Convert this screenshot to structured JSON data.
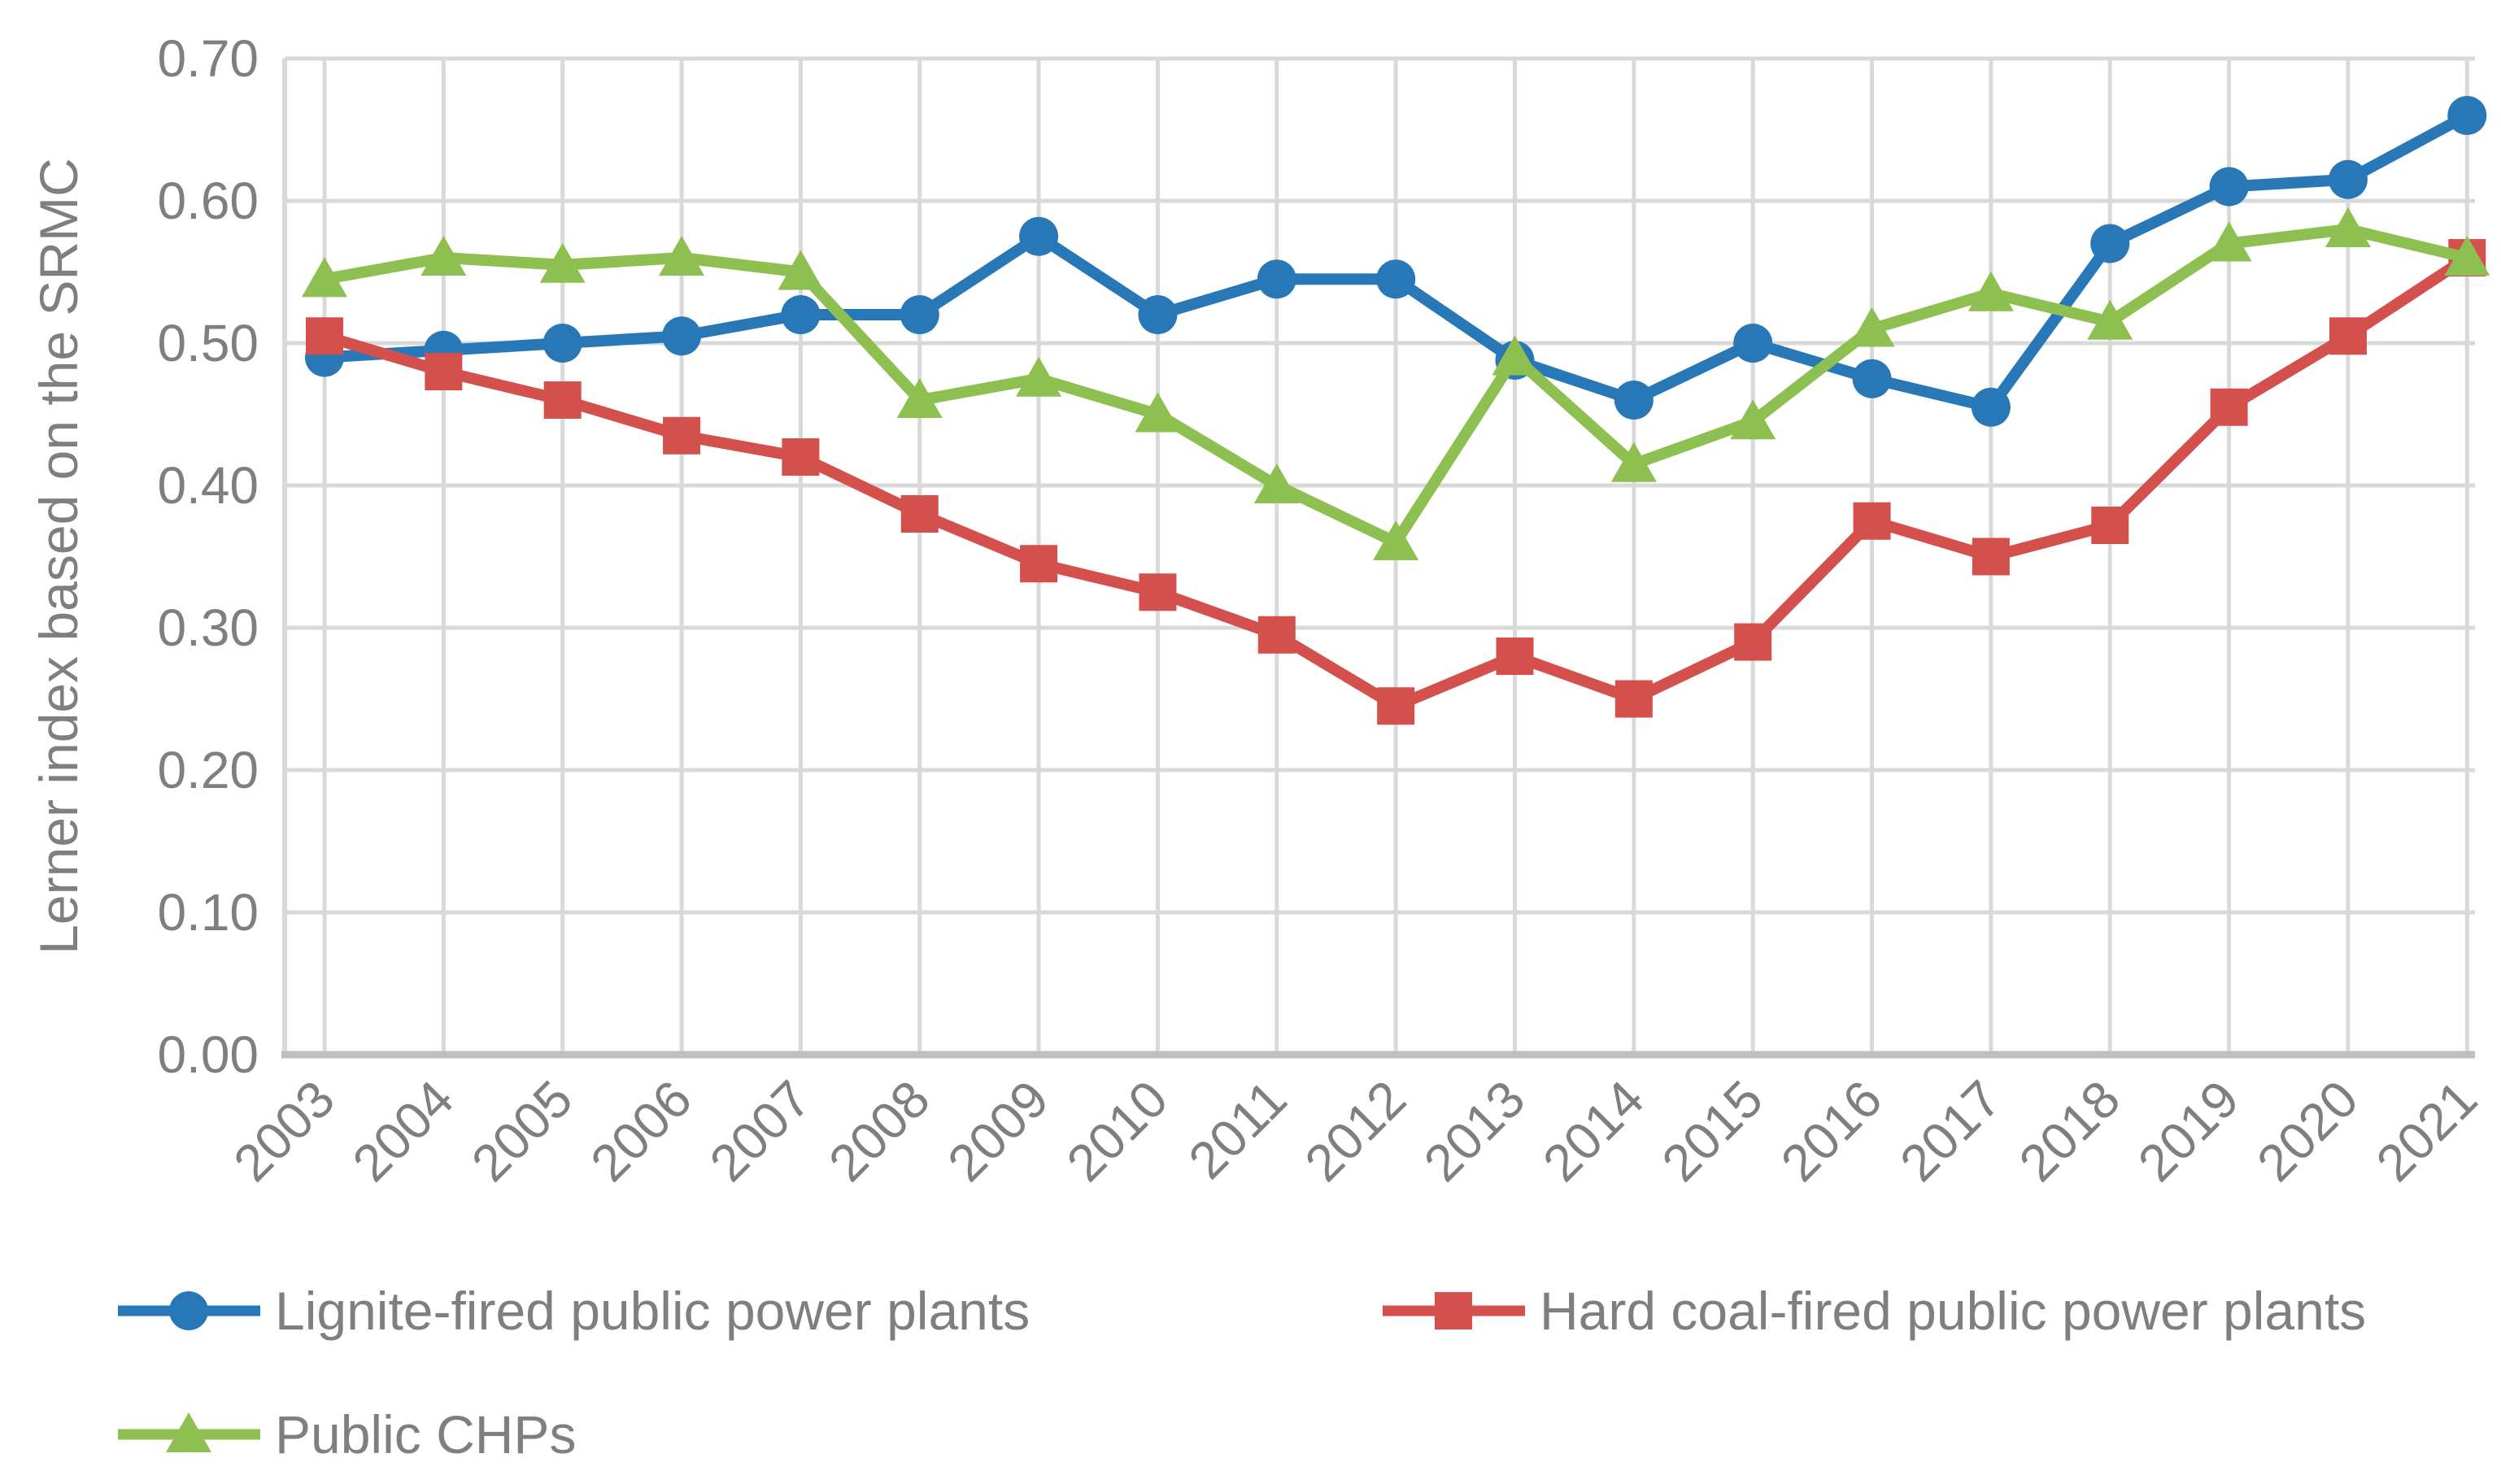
{
  "chart_data": {
    "type": "line",
    "title": "",
    "xlabel": "",
    "ylabel": "Lerner index based on the SRMC",
    "x_categories": [
      "2003",
      "2004",
      "2005",
      "2006",
      "2007",
      "2008",
      "2009",
      "2010",
      "2011",
      "2012",
      "2013",
      "2014",
      "2015",
      "2016",
      "2017",
      "2018",
      "2019",
      "2020",
      "2021"
    ],
    "ylim": [
      0.0,
      0.7
    ],
    "y_ticks": {
      "values": [
        0.0,
        0.1,
        0.2,
        0.3,
        0.4,
        0.5,
        0.6,
        0.7
      ],
      "labels": [
        "0.00",
        "0.10",
        "0.20",
        "0.30",
        "0.40",
        "0.50",
        "0.60",
        "0.70"
      ]
    },
    "grid": true,
    "legend_position": "bottom",
    "series": [
      {
        "name": "Lignite-fired public power plants",
        "marker": "circle",
        "color": "#2878B8",
        "values": [
          0.49,
          0.495,
          0.5,
          0.505,
          0.52,
          0.52,
          0.575,
          0.52,
          0.545,
          0.545,
          0.488,
          0.46,
          0.5,
          0.475,
          0.455,
          0.57,
          0.61,
          0.615,
          0.66
        ]
      },
      {
        "name": "Hard coal-fired public power plants",
        "marker": "square",
        "color": "#D4504C",
        "values": [
          0.505,
          0.48,
          0.46,
          0.435,
          0.42,
          0.38,
          0.345,
          0.325,
          0.295,
          0.245,
          0.28,
          0.25,
          0.29,
          0.375,
          0.35,
          0.372,
          0.455,
          0.505,
          0.56
        ]
      },
      {
        "name": "Public CHPs",
        "marker": "triangle",
        "color": "#8DC050",
        "values": [
          0.545,
          0.56,
          0.555,
          0.56,
          0.55,
          0.46,
          0.475,
          0.45,
          0.4,
          0.36,
          0.49,
          0.415,
          0.445,
          0.51,
          0.535,
          0.515,
          0.57,
          0.58,
          0.56
        ]
      }
    ]
  },
  "colors": {
    "gridline": "#D9D9D9",
    "axis_line": "#BFBFBF",
    "text": "#7F7F7F",
    "background": "#FFFFFF"
  }
}
